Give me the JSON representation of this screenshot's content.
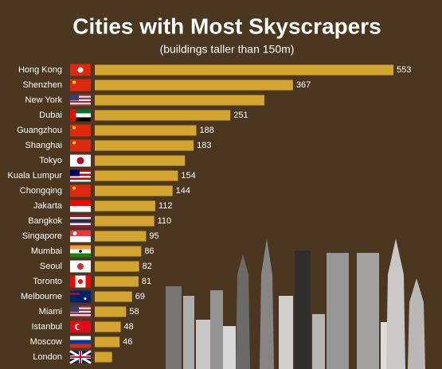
{
  "chart_data": {
    "type": "hbar",
    "title": "Cities with Most Skyscrapers",
    "subtitle": "(buildings taller than 150m)",
    "categories": [
      "Hong Kong",
      "Shenzhen",
      "New York",
      "Dubai",
      "Guangzhou",
      "Shanghai",
      "Tokyo",
      "Kuala Lumpur",
      "Chongqing",
      "Jakarta",
      "Bangkok",
      "Singapore",
      "Mumbai",
      "Seoul",
      "Toronto",
      "Melbourne",
      "Miami",
      "Istanbul",
      "Moscow",
      "London"
    ],
    "values": [
      553,
      367,
      314,
      251,
      188,
      183,
      167,
      154,
      144,
      112,
      110,
      95,
      86,
      82,
      81,
      69,
      58,
      48,
      46,
      32
    ],
    "value_labels": [
      "553",
      "367",
      null,
      "251",
      "188",
      "183",
      null,
      "154",
      "144",
      "112",
      "110",
      "95",
      "86",
      "82",
      "81",
      "69",
      "58",
      "48",
      "46",
      null
    ],
    "color": "#d4a52e"
  }
}
